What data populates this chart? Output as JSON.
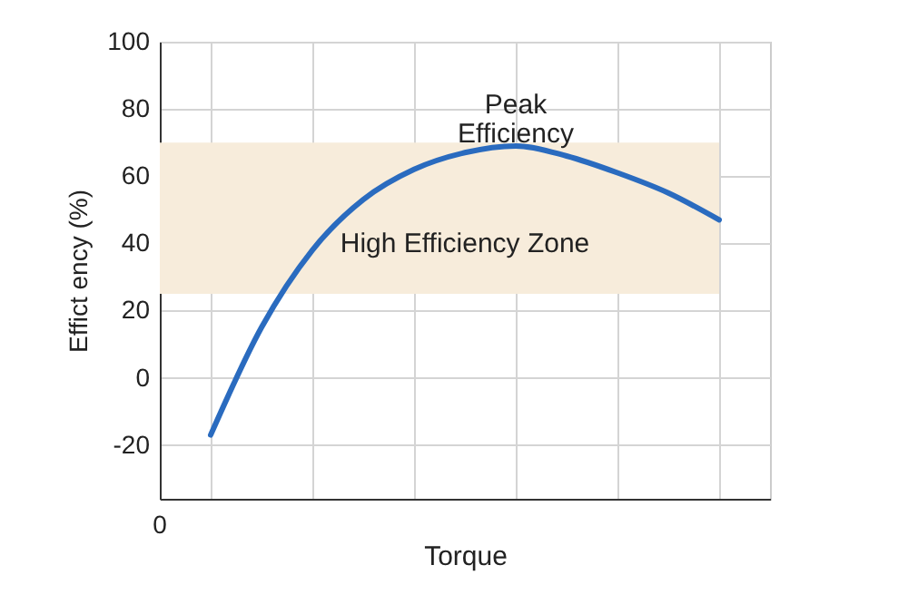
{
  "chart_data": {
    "type": "line",
    "xlabel": "Torque",
    "ylabel": "Effict ency (%)",
    "categories": [
      null,
      null,
      null,
      null,
      null,
      null,
      null,
      null,
      null,
      null,
      null
    ],
    "series": [
      {
        "color": "#2a6bbf",
        "values": [
          -17,
          15,
          38,
          53,
          62,
          67,
          69,
          66,
          61,
          55,
          47
        ]
      }
    ],
    "ylim": [
      -36,
      100
    ],
    "yticks": [
      -20,
      0,
      20,
      40,
      60,
      80,
      100
    ],
    "bands": [
      {
        "axis": "y",
        "from": 25,
        "to": 70,
        "label": "High Efficiency Zone",
        "color": "#f7ecdb"
      }
    ],
    "annotations": [
      "0",
      {
        "text": "Peak Efficiency",
        "y": 69
      }
    ],
    "grid": true,
    "marker": "none",
    "line_style": "solid"
  }
}
